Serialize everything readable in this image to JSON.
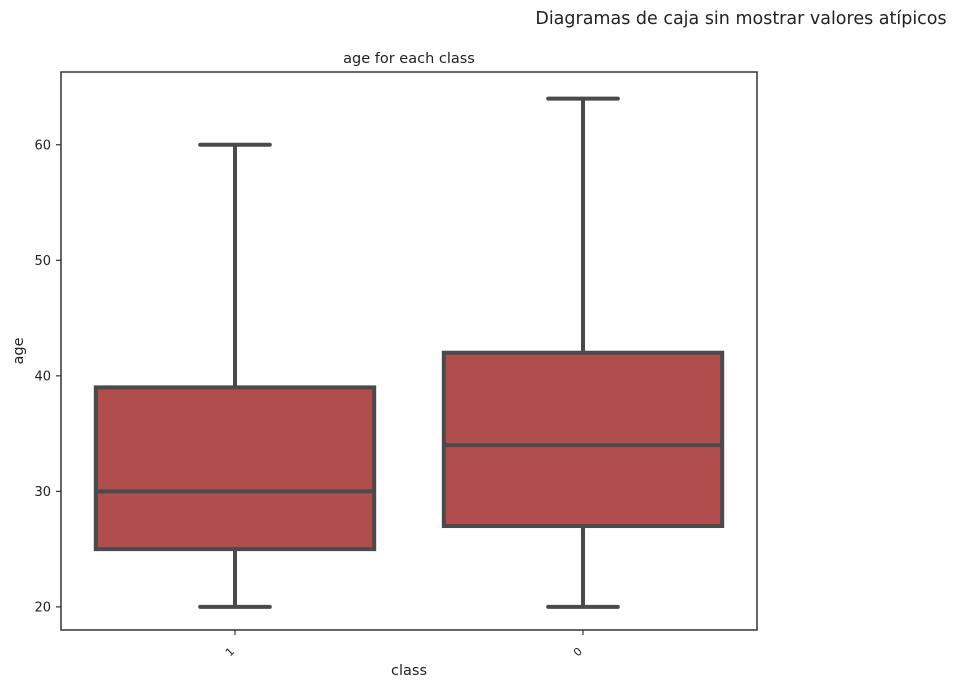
{
  "chart_data": {
    "type": "box",
    "suptitle": "Diagramas de caja sin mostrar valores atípicos",
    "title": "age for each class",
    "xlabel": "class",
    "ylabel": "age",
    "ylim": [
      18,
      66.3
    ],
    "yticks": [
      20,
      30,
      40,
      50,
      60
    ],
    "categories": [
      "1",
      "0"
    ],
    "boxes": [
      {
        "category": "1",
        "whisker_low": 20,
        "q1": 25,
        "median": 30,
        "q3": 39,
        "whisker_high": 60
      },
      {
        "category": "0",
        "whisker_low": 20,
        "q1": 27,
        "median": 34,
        "q3": 42,
        "whisker_high": 64
      }
    ],
    "box_color": "#b04e4e",
    "line_color": "#4a4a4a",
    "grid": false,
    "showfliers": false
  }
}
